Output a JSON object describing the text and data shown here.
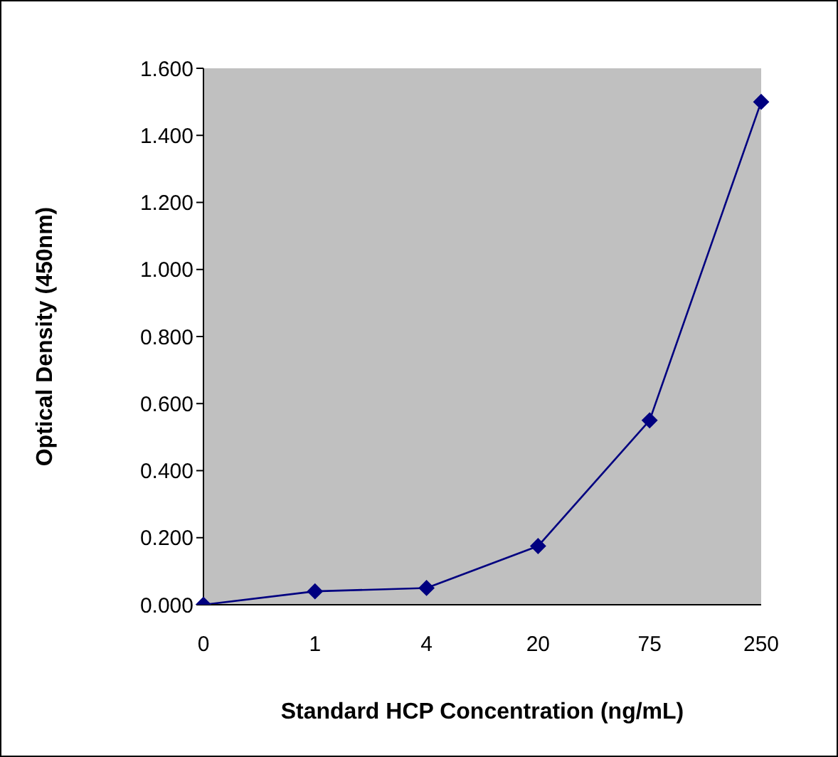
{
  "chart_data": {
    "type": "line",
    "xlabel": "Standard HCP Concentration (ng/mL)",
    "ylabel": "Optical Density (450nm)",
    "categories": [
      "0",
      "1",
      "4",
      "20",
      "75",
      "250"
    ],
    "series": [
      {
        "color": "#000080",
        "values": [
          0,
          0.04,
          0.05,
          0.175,
          0.55,
          1.5
        ]
      }
    ],
    "ylim": [
      0,
      1.6
    ],
    "yticks": [
      {
        "value": 0,
        "label": "0.000"
      },
      {
        "value": 0.2,
        "label": "0.200"
      },
      {
        "value": 0.4,
        "label": "0.400"
      },
      {
        "value": 0.6,
        "label": "0.600"
      },
      {
        "value": 0.8,
        "label": "0.800"
      },
      {
        "value": 1,
        "label": "1.000"
      },
      {
        "value": 1.2,
        "label": "1.200"
      },
      {
        "value": 1.4,
        "label": "1.400"
      },
      {
        "value": 1.6,
        "label": "1.600"
      }
    ],
    "grid": false,
    "legend": false,
    "marker": "diamond",
    "line_style": "solid"
  }
}
